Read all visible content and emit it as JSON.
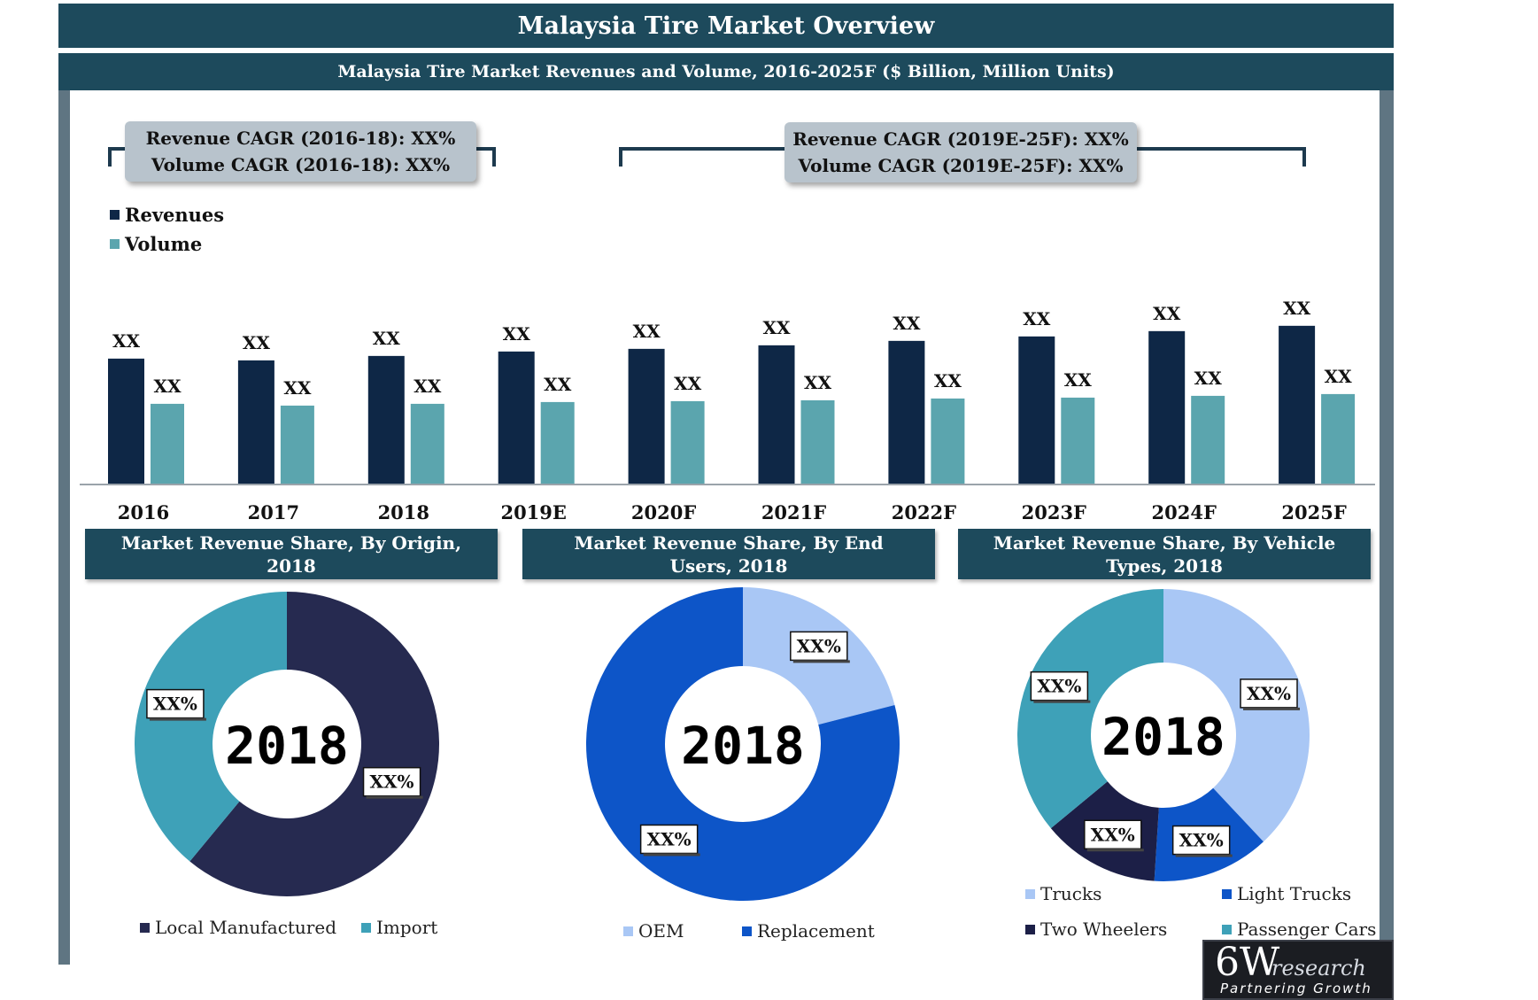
{
  "header": {
    "title": "Malaysia Tire Market Overview",
    "subtitle": "Malaysia Tire Market Revenues and Volume, 2016-2025F ($ Billion, Million Units)"
  },
  "cagr": {
    "historic": [
      "Revenue CAGR (2016-18): XX%",
      "Volume CAGR (2016-18): XX%"
    ],
    "forecast": [
      "Revenue CAGR (2019E-25F): XX%",
      "Volume CAGR (2019E-25F): XX%"
    ]
  },
  "colors": {
    "revenues": "#0e2746",
    "volume": "#5ba5ae",
    "panel": "#1d4a5c"
  },
  "chart_data": [
    {
      "type": "bar",
      "categories": [
        "2016",
        "2017",
        "2018",
        "2019E",
        "2020F",
        "2021F",
        "2022F",
        "2023F",
        "2024F",
        "2025F"
      ],
      "series": [
        {
          "name": "Revenues",
          "values": [
            71,
            70,
            72.5,
            75,
            76.5,
            78.5,
            81,
            83.5,
            86.5,
            89.5
          ],
          "labels": [
            "XX",
            "XX",
            "XX",
            "XX",
            "XX",
            "XX",
            "XX",
            "XX",
            "XX",
            "XX"
          ]
        },
        {
          "name": "Volume",
          "values": [
            45.5,
            44.5,
            45.5,
            46.5,
            47,
            47.5,
            48.5,
            49,
            50,
            51
          ],
          "labels": [
            "XX",
            "XX",
            "XX",
            "XX",
            "XX",
            "XX",
            "XX",
            "XX",
            "XX",
            "XX"
          ]
        }
      ],
      "ylim": [
        0,
        100
      ],
      "grid": false,
      "legend": "top-left"
    },
    {
      "type": "pie",
      "title": "Market Revenue Share, By Origin, 2018",
      "center_label": "2018",
      "slices": [
        {
          "name": "Local Manufactured",
          "value": 61,
          "label": "XX%",
          "color": "#262a50"
        },
        {
          "name": "Import",
          "value": 39,
          "label": "XX%",
          "color": "#3ea1b8"
        }
      ],
      "legend": "bottom"
    },
    {
      "type": "pie",
      "title": "Market Revenue Share, By End Users, 2018",
      "center_label": "2018",
      "slices": [
        {
          "name": "OEM",
          "value": 21,
          "label": "XX%",
          "color": "#a9c7f5"
        },
        {
          "name": "Replacement",
          "value": 79,
          "label": "XX%",
          "color": "#0d55c8"
        }
      ],
      "legend": "bottom"
    },
    {
      "type": "pie",
      "title": "Market Revenue Share, By Vehicle Types, 2018",
      "center_label": "2018",
      "slices": [
        {
          "name": "Trucks",
          "value": 38,
          "label": "XX%",
          "color": "#a9c7f5"
        },
        {
          "name": "Light Trucks",
          "value": 13,
          "label": "XX%",
          "color": "#0d55c8"
        },
        {
          "name": "Two Wheelers",
          "value": 13,
          "label": "XX%",
          "color": "#1c1f47"
        },
        {
          "name": "Passenger Cars",
          "value": 36,
          "label": "XX%",
          "color": "#3ea1b8"
        }
      ],
      "legend": "bottom"
    }
  ],
  "logo": {
    "main": "6W",
    "suffix": "research",
    "tagline": "Partnering Growth"
  }
}
